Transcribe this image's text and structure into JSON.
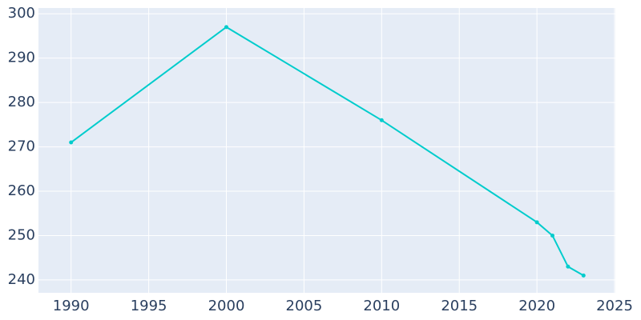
{
  "chart_data": {
    "type": "line",
    "x": [
      1990,
      2000,
      2010,
      2020,
      2021,
      2022,
      2023
    ],
    "series": [
      {
        "color": "#00cccc",
        "values": [
          271,
          297,
          276,
          253,
          250,
          243,
          241
        ]
      }
    ],
    "xlim": [
      1987.9,
      2025.05
    ],
    "xticks": [
      1990,
      1995,
      2000,
      2005,
      2010,
      2015,
      2020,
      2025
    ],
    "ylim": [
      237.1,
      301.3
    ],
    "yticks": [
      240,
      250,
      260,
      270,
      280,
      290,
      300
    ],
    "grid": true
  }
}
